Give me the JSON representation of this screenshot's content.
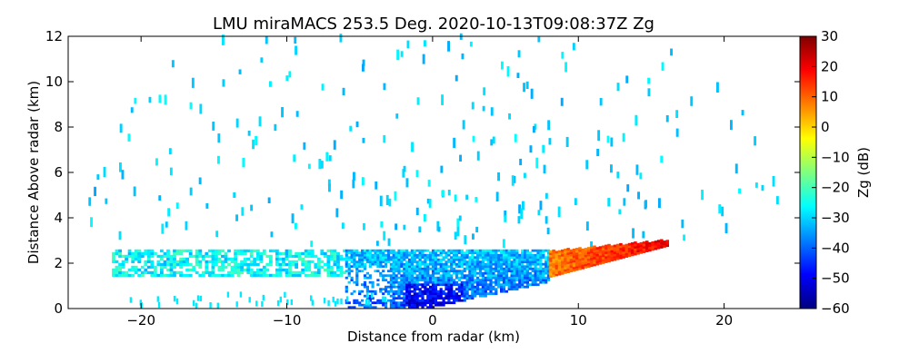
{
  "chart_data": {
    "type": "heatmap",
    "title": "LMU miraMACS 253.5 Deg. 2020-10-13T09:08:37Z  Zg",
    "xlabel": "Distance from radar (km)",
    "ylabel": "Distance Above radar  (km)",
    "colorbar_label": "Zg (dB)",
    "xlim": [
      -25,
      25.2
    ],
    "ylim": [
      0,
      12
    ],
    "x_ticks": [
      -20,
      -10,
      0,
      10,
      20
    ],
    "x_tick_labels": [
      "−20",
      "−10",
      "0",
      "10",
      "20"
    ],
    "y_ticks": [
      0,
      2,
      4,
      6,
      8,
      10,
      12
    ],
    "y_tick_labels": [
      "0",
      "2",
      "4",
      "6",
      "8",
      "10",
      "12"
    ],
    "colorbar_range": [
      -60,
      30
    ],
    "colorbar_ticks": [
      -60,
      -50,
      -40,
      -30,
      -20,
      -10,
      0,
      10,
      20,
      30
    ],
    "colorbar_tick_labels": [
      "−60",
      "−50",
      "−40",
      "−30",
      "−20",
      "−10",
      "0",
      "10",
      "20",
      "30"
    ],
    "colormap": [
      "#00007f",
      "#0000ff",
      "#007fff",
      "#00ffff",
      "#7fff7f",
      "#ffff00",
      "#ff7f00",
      "#ff0000",
      "#7f0000"
    ],
    "echo_regions": [
      {
        "name": "low-level-layer-left",
        "x_range": [
          -22,
          -6
        ],
        "top_km": 2.5,
        "zg_db": -26
      },
      {
        "name": "low-level-core-center",
        "x_range": [
          -6,
          8
        ],
        "top_km": 2.6,
        "zg_db": -36
      },
      {
        "name": "low-level-strong-right",
        "x_range": [
          8,
          16
        ],
        "top_km": 3.0,
        "zg_db": 10
      },
      {
        "name": "scattered-clutter-aloft",
        "x_range": [
          -23,
          23
        ],
        "top_km": 12,
        "zg_db": -30
      }
    ]
  }
}
